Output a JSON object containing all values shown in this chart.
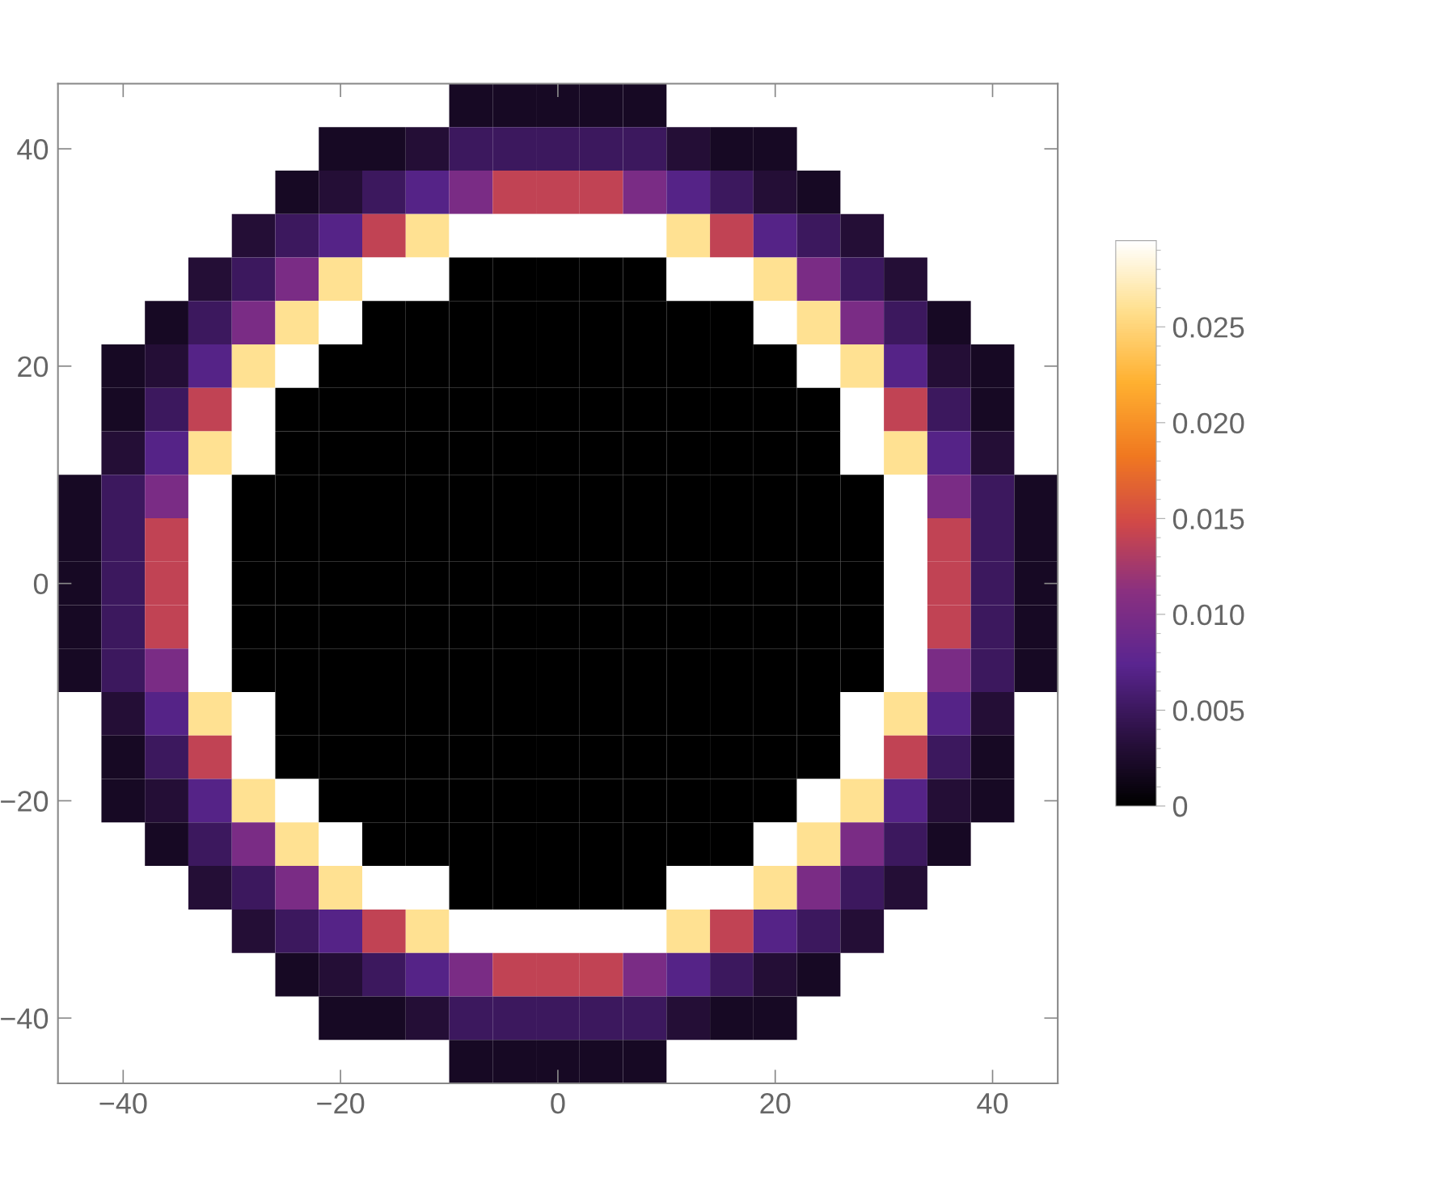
{
  "chart_data": {
    "type": "heatmap",
    "categories": [
      null,
      "−40",
      null,
      null,
      null,
      null,
      "−20",
      null,
      null,
      null,
      null,
      "0",
      null,
      null,
      null,
      null,
      "20",
      null,
      null,
      null,
      null,
      "40",
      null
    ],
    "y_categories": [
      null,
      "40",
      null,
      null,
      null,
      null,
      "20",
      null,
      null,
      null,
      null,
      "0",
      null,
      null,
      null,
      null,
      "−20",
      null,
      null,
      null,
      null,
      "−40",
      null
    ],
    "cells": [
      [
        null,
        null,
        null,
        null,
        null,
        null,
        null,
        null,
        null,
        0.002,
        0.002,
        0.002,
        0.002,
        0.002,
        null,
        null,
        null,
        null,
        null,
        null,
        null,
        null,
        null
      ],
      [
        null,
        null,
        null,
        null,
        null,
        null,
        0.002,
        0.002,
        0.003,
        0.005,
        0.005,
        0.005,
        0.005,
        0.005,
        0.003,
        0.002,
        0.002,
        null,
        null,
        null,
        null,
        null,
        null
      ],
      [
        null,
        null,
        null,
        null,
        null,
        0.002,
        0.003,
        0.005,
        0.007,
        0.01,
        0.014,
        0.014,
        0.014,
        0.01,
        0.007,
        0.005,
        0.003,
        0.002,
        null,
        null,
        null,
        null,
        null
      ],
      [
        null,
        null,
        null,
        null,
        0.003,
        0.005,
        0.007,
        0.014,
        0.026,
        0.03,
        0.03,
        0.03,
        0.03,
        0.03,
        0.026,
        0.014,
        0.007,
        0.005,
        0.003,
        null,
        null,
        null,
        null
      ],
      [
        null,
        null,
        null,
        0.003,
        0.005,
        0.01,
        0.026,
        0.03,
        0.03,
        0,
        0,
        0,
        0,
        0,
        0.03,
        0.03,
        0.026,
        0.01,
        0.005,
        0.003,
        null,
        null,
        null
      ],
      [
        null,
        null,
        0.002,
        0.005,
        0.01,
        0.026,
        0.03,
        0,
        0,
        0,
        0,
        0,
        0,
        0,
        0,
        0,
        0.03,
        0.026,
        0.01,
        0.005,
        0.002,
        null,
        null
      ],
      [
        null,
        0.002,
        0.003,
        0.007,
        0.026,
        0.03,
        0,
        0,
        0,
        0,
        0,
        0,
        0,
        0,
        0,
        0,
        0,
        0.03,
        0.026,
        0.007,
        0.003,
        0.002,
        null
      ],
      [
        null,
        0.002,
        0.005,
        0.014,
        0.03,
        0,
        0,
        0,
        0,
        0,
        0,
        0,
        0,
        0,
        0,
        0,
        0,
        0,
        0.03,
        0.014,
        0.005,
        0.002,
        null
      ],
      [
        null,
        0.003,
        0.007,
        0.026,
        0.03,
        0,
        0,
        0,
        0,
        0,
        0,
        0,
        0,
        0,
        0,
        0,
        0,
        0,
        0.03,
        0.026,
        0.007,
        0.003,
        null
      ],
      [
        0.002,
        0.005,
        0.01,
        0.03,
        0,
        0,
        0,
        0,
        0,
        0,
        0,
        0,
        0,
        0,
        0,
        0,
        0,
        0,
        0,
        0.03,
        0.01,
        0.005,
        0.002
      ],
      [
        0.002,
        0.005,
        0.014,
        0.03,
        0,
        0,
        0,
        0,
        0,
        0,
        0,
        0,
        0,
        0,
        0,
        0,
        0,
        0,
        0,
        0.03,
        0.014,
        0.005,
        0.002
      ],
      [
        0.002,
        0.005,
        0.014,
        0.03,
        0,
        0,
        0,
        0,
        0,
        0,
        0,
        0,
        0,
        0,
        0,
        0,
        0,
        0,
        0,
        0.03,
        0.014,
        0.005,
        0.002
      ],
      [
        0.002,
        0.005,
        0.014,
        0.03,
        0,
        0,
        0,
        0,
        0,
        0,
        0,
        0,
        0,
        0,
        0,
        0,
        0,
        0,
        0,
        0.03,
        0.014,
        0.005,
        0.002
      ],
      [
        0.002,
        0.005,
        0.01,
        0.03,
        0,
        0,
        0,
        0,
        0,
        0,
        0,
        0,
        0,
        0,
        0,
        0,
        0,
        0,
        0,
        0.03,
        0.01,
        0.005,
        0.002
      ],
      [
        null,
        0.003,
        0.007,
        0.026,
        0.03,
        0,
        0,
        0,
        0,
        0,
        0,
        0,
        0,
        0,
        0,
        0,
        0,
        0,
        0.03,
        0.026,
        0.007,
        0.003,
        null
      ],
      [
        null,
        0.002,
        0.005,
        0.014,
        0.03,
        0,
        0,
        0,
        0,
        0,
        0,
        0,
        0,
        0,
        0,
        0,
        0,
        0,
        0.03,
        0.014,
        0.005,
        0.002,
        null
      ],
      [
        null,
        0.002,
        0.003,
        0.007,
        0.026,
        0.03,
        0,
        0,
        0,
        0,
        0,
        0,
        0,
        0,
        0,
        0,
        0,
        0.03,
        0.026,
        0.007,
        0.003,
        0.002,
        null
      ],
      [
        null,
        null,
        0.002,
        0.005,
        0.01,
        0.026,
        0.03,
        0,
        0,
        0,
        0,
        0,
        0,
        0,
        0,
        0,
        0.03,
        0.026,
        0.01,
        0.005,
        0.002,
        null,
        null
      ],
      [
        null,
        null,
        null,
        0.003,
        0.005,
        0.01,
        0.026,
        0.03,
        0.03,
        0,
        0,
        0,
        0,
        0,
        0.03,
        0.03,
        0.026,
        0.01,
        0.005,
        0.003,
        null,
        null,
        null
      ],
      [
        null,
        null,
        null,
        null,
        0.003,
        0.005,
        0.007,
        0.014,
        0.026,
        0.03,
        0.03,
        0.03,
        0.03,
        0.03,
        0.026,
        0.014,
        0.007,
        0.005,
        0.003,
        null,
        null,
        null,
        null
      ],
      [
        null,
        null,
        null,
        null,
        null,
        0.002,
        0.003,
        0.005,
        0.007,
        0.01,
        0.014,
        0.014,
        0.014,
        0.01,
        0.007,
        0.005,
        0.003,
        0.002,
        null,
        null,
        null,
        null,
        null
      ],
      [
        null,
        null,
        null,
        null,
        null,
        null,
        0.002,
        0.002,
        0.003,
        0.005,
        0.005,
        0.005,
        0.005,
        0.005,
        0.003,
        0.002,
        0.002,
        null,
        null,
        null,
        null,
        null,
        null
      ],
      [
        null,
        null,
        null,
        null,
        null,
        null,
        null,
        null,
        null,
        0.002,
        0.002,
        0.002,
        0.002,
        0.002,
        null,
        null,
        null,
        null,
        null,
        null,
        null,
        null,
        null
      ]
    ],
    "clim": [
      0,
      0.0295
    ],
    "cticks": [
      0,
      0.005,
      {
        "value": 0.01,
        "label": "0.010"
      },
      0.015,
      {
        "value": 0.02,
        "label": "0.020"
      },
      0.025
    ]
  }
}
